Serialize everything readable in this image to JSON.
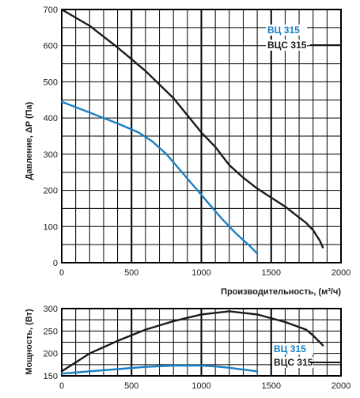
{
  "colors": {
    "vc315": "#1a7fc4",
    "vcs315": "#1a1a1a",
    "grid": "#000000"
  },
  "chart_data": [
    {
      "type": "line",
      "title": "",
      "xlabel": "Производительность, (м³/ч)",
      "ylabel": "Давление, ΔP (Па)",
      "xlim": [
        0,
        2000
      ],
      "ylim": [
        0,
        700
      ],
      "x_ticks": [
        0,
        500,
        1000,
        1500,
        2000
      ],
      "y_ticks": [
        0,
        100,
        200,
        300,
        400,
        500,
        600,
        700
      ],
      "grid": true,
      "legend_position": "top-right",
      "series": [
        {
          "name": "ВЦ 315",
          "color": "#1a7fc4",
          "x": [
            0,
            200,
            400,
            550,
            650,
            750,
            850,
            950,
            1050,
            1150,
            1250,
            1350,
            1400
          ],
          "y": [
            445,
            415,
            385,
            360,
            335,
            300,
            255,
            210,
            165,
            120,
            80,
            45,
            25
          ]
        },
        {
          "name": "ВЦС 315",
          "color": "#1a1a1a",
          "x": [
            0,
            200,
            400,
            600,
            800,
            1000,
            1100,
            1200,
            1300,
            1400,
            1500,
            1600,
            1700,
            1750,
            1800,
            1850,
            1870
          ],
          "y": [
            700,
            655,
            595,
            530,
            455,
            360,
            320,
            270,
            235,
            205,
            180,
            155,
            125,
            110,
            90,
            60,
            42
          ]
        }
      ]
    },
    {
      "type": "line",
      "title": "",
      "xlabel": "",
      "ylabel": "Мощность, (Вт)",
      "xlim": [
        0,
        2000
      ],
      "ylim": [
        150,
        300
      ],
      "x_ticks": [
        0,
        500,
        1000,
        1500,
        2000
      ],
      "y_ticks": [
        150,
        200,
        250,
        300
      ],
      "grid": true,
      "legend_position": "bottom-right",
      "series": [
        {
          "name": "ВЦ 315",
          "color": "#1a7fc4",
          "x": [
            0,
            200,
            400,
            600,
            800,
            1000,
            1100,
            1200,
            1300,
            1400
          ],
          "y": [
            155,
            160,
            165,
            170,
            173,
            173,
            171,
            168,
            164,
            160
          ]
        },
        {
          "name": "ВЦС 315",
          "color": "#1a1a1a",
          "x": [
            0,
            200,
            400,
            600,
            800,
            1000,
            1200,
            1400,
            1600,
            1750,
            1800,
            1870
          ],
          "y": [
            160,
            200,
            228,
            253,
            272,
            287,
            294,
            287,
            270,
            253,
            240,
            218
          ]
        }
      ]
    }
  ]
}
